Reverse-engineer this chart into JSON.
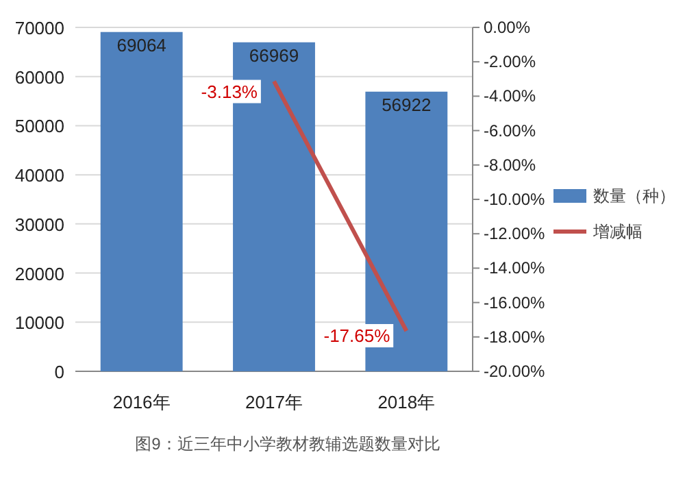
{
  "chart_data": {
    "type": "bar",
    "categories": [
      "2016年",
      "2017年",
      "2018年"
    ],
    "series": [
      {
        "name": "数量（种）",
        "color": "#4f81bd",
        "values": [
          69064,
          66969,
          56922
        ],
        "value_labels": [
          "69064",
          "66969",
          "56922"
        ]
      },
      {
        "name": "增减幅",
        "type": "line",
        "axis": "y2",
        "color": "#c0504d",
        "values": [
          null,
          -3.13,
          -17.65
        ],
        "value_labels": [
          null,
          "-3.13%",
          "-17.65%"
        ]
      }
    ],
    "ylim": [
      0,
      70000
    ],
    "yticks": [
      0,
      10000,
      20000,
      30000,
      40000,
      50000,
      60000,
      70000
    ],
    "y2lim": [
      -20,
      0
    ],
    "y2ticks": [
      {
        "value": 0,
        "label": "0.00%"
      },
      {
        "value": -2,
        "label": "-2.00%"
      },
      {
        "value": -4,
        "label": "-4.00%"
      },
      {
        "value": -6,
        "label": "-6.00%"
      },
      {
        "value": -8,
        "label": "-8.00%"
      },
      {
        "value": -10,
        "label": "-10.00%"
      },
      {
        "value": -12,
        "label": "-12.00%"
      },
      {
        "value": -14,
        "label": "-14.00%"
      },
      {
        "value": -16,
        "label": "-16.00%"
      },
      {
        "value": -18,
        "label": "-18.00%"
      },
      {
        "value": -20,
        "label": "-20.00%"
      }
    ],
    "grid": "y",
    "legend": "right",
    "marker": "none",
    "annotations": [
      "图9：近三年中小学教材教辅选题数量对比"
    ]
  }
}
